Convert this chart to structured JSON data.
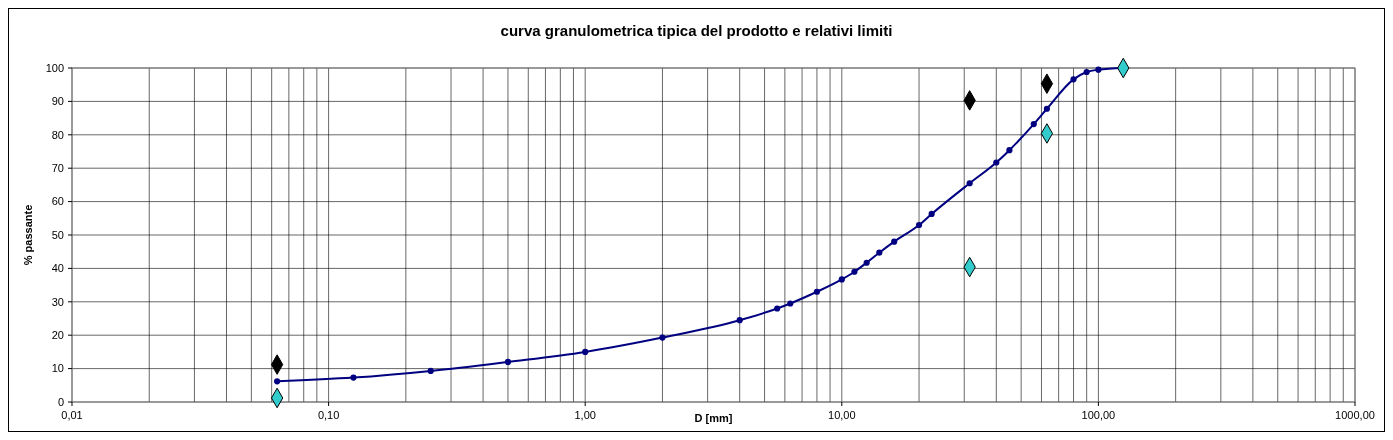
{
  "chart_data": {
    "type": "line",
    "title": "curva granulometrica tipica del prodotto e relativi limiti",
    "xlabel": "D [mm]",
    "ylabel": "% passante",
    "log": "x",
    "grid": true,
    "xlim": [
      0.01,
      1000
    ],
    "ylim": [
      0,
      100
    ],
    "yticks": [
      0,
      10,
      20,
      30,
      40,
      50,
      60,
      70,
      80,
      90,
      100
    ],
    "xticks": [
      {
        "value": 0.01,
        "label": "0,01"
      },
      {
        "value": 0.02,
        "label": null
      },
      {
        "value": 0.03,
        "label": null
      },
      {
        "value": 0.04,
        "label": null
      },
      {
        "value": 0.05,
        "label": null
      },
      {
        "value": 0.06,
        "label": null
      },
      {
        "value": 0.07,
        "label": null
      },
      {
        "value": 0.08,
        "label": null
      },
      {
        "value": 0.09,
        "label": null
      },
      {
        "value": 0.1,
        "label": "0,10"
      },
      {
        "value": 0.2,
        "label": null
      },
      {
        "value": 0.3,
        "label": null
      },
      {
        "value": 0.4,
        "label": null
      },
      {
        "value": 0.5,
        "label": null
      },
      {
        "value": 0.6,
        "label": null
      },
      {
        "value": 0.7,
        "label": null
      },
      {
        "value": 0.8,
        "label": null
      },
      {
        "value": 0.9,
        "label": null
      },
      {
        "value": 1,
        "label": "1,00"
      },
      {
        "value": 2,
        "label": null
      },
      {
        "value": 3,
        "label": null
      },
      {
        "value": 4,
        "label": null
      },
      {
        "value": 5,
        "label": null
      },
      {
        "value": 6,
        "label": null
      },
      {
        "value": 7,
        "label": null
      },
      {
        "value": 8,
        "label": null
      },
      {
        "value": 9,
        "label": null
      },
      {
        "value": 10,
        "label": "10,00"
      },
      {
        "value": 20,
        "label": null
      },
      {
        "value": 30,
        "label": null
      },
      {
        "value": 40,
        "label": null
      },
      {
        "value": 50,
        "label": null
      },
      {
        "value": 60,
        "label": null
      },
      {
        "value": 70,
        "label": null
      },
      {
        "value": 80,
        "label": null
      },
      {
        "value": 90,
        "label": null
      },
      {
        "value": 100,
        "label": "100,00"
      },
      {
        "value": 200,
        "label": null
      },
      {
        "value": 300,
        "label": null
      },
      {
        "value": 400,
        "label": null
      },
      {
        "value": 500,
        "label": null
      },
      {
        "value": 600,
        "label": null
      },
      {
        "value": 700,
        "label": null
      },
      {
        "value": 800,
        "label": null
      },
      {
        "value": 900,
        "label": null
      },
      {
        "value": 1000,
        "label": "1000,00"
      }
    ],
    "series": [
      {
        "color": "#000080",
        "marker": "circle",
        "line_style": "solid",
        "x": [
          0.063,
          0.125,
          0.25,
          0.5,
          1,
          2,
          4,
          5.6,
          6.3,
          8,
          10,
          11.2,
          12.5,
          14,
          16,
          20,
          22.4,
          31.5,
          40,
          45,
          56,
          63,
          80,
          90,
          100,
          125
        ],
        "values": [
          6.2,
          7.3,
          9.3,
          12,
          15,
          19.3,
          24.5,
          28,
          29.5,
          33,
          36.7,
          39,
          41.7,
          44.7,
          48,
          53,
          56.3,
          65.5,
          71.7,
          75.4,
          83.2,
          87.8,
          96.6,
          98.8,
          99.5,
          100
        ]
      },
      {
        "type": "scatter",
        "color": "#000000",
        "marker": "diamond",
        "x": [
          0.063,
          31.5,
          63
        ],
        "values": [
          11.2,
          90.3,
          95.3
        ]
      },
      {
        "type": "scatter",
        "color": "#33cccc",
        "marker": "diamond",
        "x": [
          0.063,
          31.5,
          63,
          125
        ],
        "values": [
          1.2,
          40.4,
          80.4,
          100
        ]
      }
    ]
  }
}
